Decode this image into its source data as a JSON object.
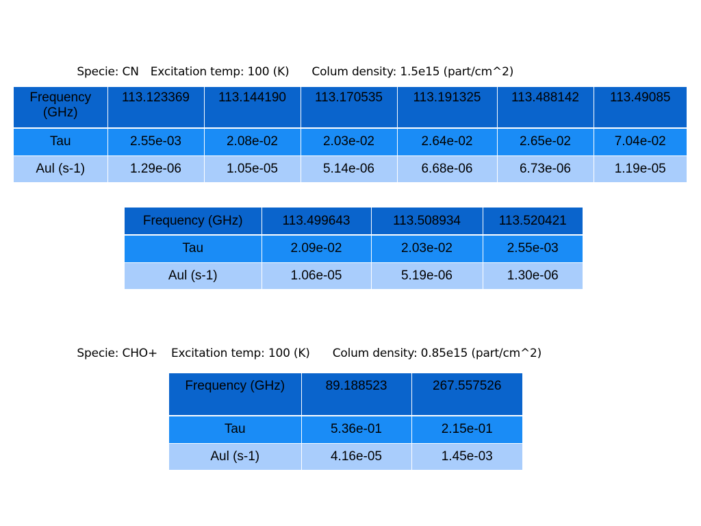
{
  "sections": [
    {
      "caption": {
        "specie": "Specie: CN",
        "temp": "Excitation temp: 100 (K)",
        "density": "Colum density: 1.5e15 (part/cm^2)"
      },
      "tables": [
        {
          "rows": [
            [
              "Frequency (GHz)",
              "113.123369",
              "113.144190",
              "113.170535",
              "113.191325",
              "113.488142",
              "113.49085"
            ],
            [
              "Tau",
              "2.55e-03",
              "2.08e-02",
              "2.03e-02",
              "2.64e-02",
              "2.65e-02",
              "7.04e-02"
            ],
            [
              "Aul (s-1)",
              "1.29e-06",
              "1.05e-05",
              "5.14e-06",
              "6.68e-06",
              "6.73e-06",
              "1.19e-05"
            ]
          ]
        },
        {
          "rows": [
            [
              "Frequency (GHz)",
              "113.499643",
              "113.508934",
              "113.520421"
            ],
            [
              "Tau",
              "2.09e-02",
              "2.03e-02",
              "2.55e-03"
            ],
            [
              "Aul (s-1)",
              "1.06e-05",
              "5.19e-06",
              "1.30e-06"
            ]
          ]
        }
      ]
    },
    {
      "caption": {
        "specie": "Specie: CHO+",
        "temp": "Excitation temp: 100 (K)",
        "density": "Colum density: 0.85e15 (part/cm^2)"
      },
      "tables": [
        {
          "rows": [
            [
              "Frequency (GHz)",
              "89.188523",
              "267.557526"
            ],
            [
              "Tau",
              "5.36e-01",
              "2.15e-01"
            ],
            [
              "Aul (s-1)",
              "4.16e-05",
              "1.45e-03"
            ]
          ]
        }
      ]
    }
  ]
}
